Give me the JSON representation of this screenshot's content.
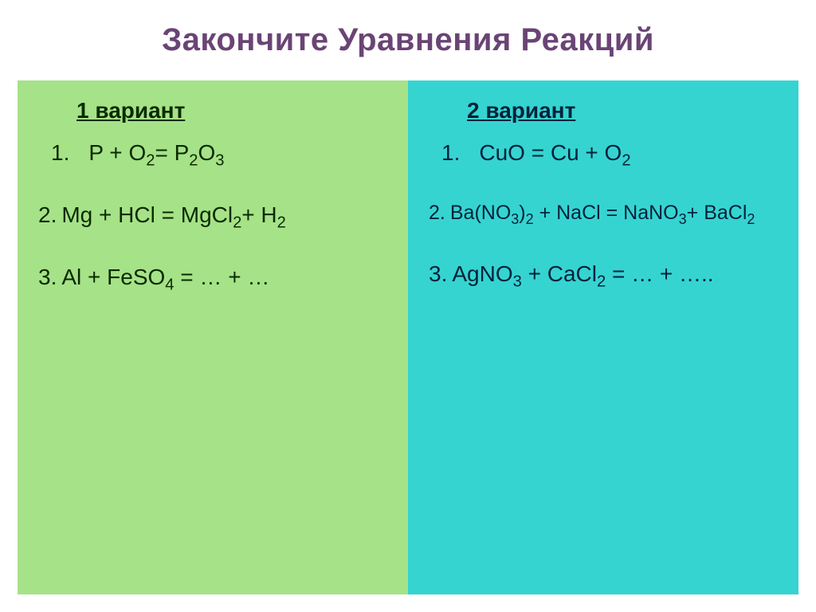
{
  "slide": {
    "background_color": "#ffffff",
    "title": {
      "text": "Закончите Уравнения Реакций",
      "color": "#6a4475",
      "fontsize": 40
    },
    "panels": {
      "left": {
        "background_color": "#a6e288",
        "text_color": "#0a2a00",
        "heading": {
          "text": "1 вариант",
          "fontsize": 28
        },
        "eq_fontsize": 28,
        "equations": [
          {
            "prefix": "1.",
            "indent": true,
            "html": "P + O<sub>2</sub>= P<sub>2</sub>O<sub>3</sub>"
          },
          {
            "prefix": "2.",
            "indent": false,
            "html": "Mg + HCl = MgCl<sub>2</sub>+ H<sub>2</sub>"
          },
          {
            "prefix": "3.",
            "indent": false,
            "html": "Al + FeSO<sub>4</sub> = … + …"
          }
        ]
      },
      "right": {
        "background_color": "#35d4d1",
        "text_color": "#03223a",
        "heading": {
          "text": "2 вариант",
          "fontsize": 28
        },
        "eq_fontsize": 28,
        "equations": [
          {
            "prefix": "1.",
            "indent": true,
            "html": "CuO = Cu + O<sub>2</sub>"
          },
          {
            "prefix": "2.",
            "indent": false,
            "html": "Ba(NO<sub>3</sub>)<sub>2</sub> + NaCl = NaNO<sub>3</sub>+ BaCl<sub>2</sub>",
            "fontsize": 25
          },
          {
            "prefix": "3.",
            "indent": false,
            "html": "AgNO<sub>3</sub> + CaCl<sub>2</sub> = … + ….."
          }
        ]
      }
    }
  }
}
